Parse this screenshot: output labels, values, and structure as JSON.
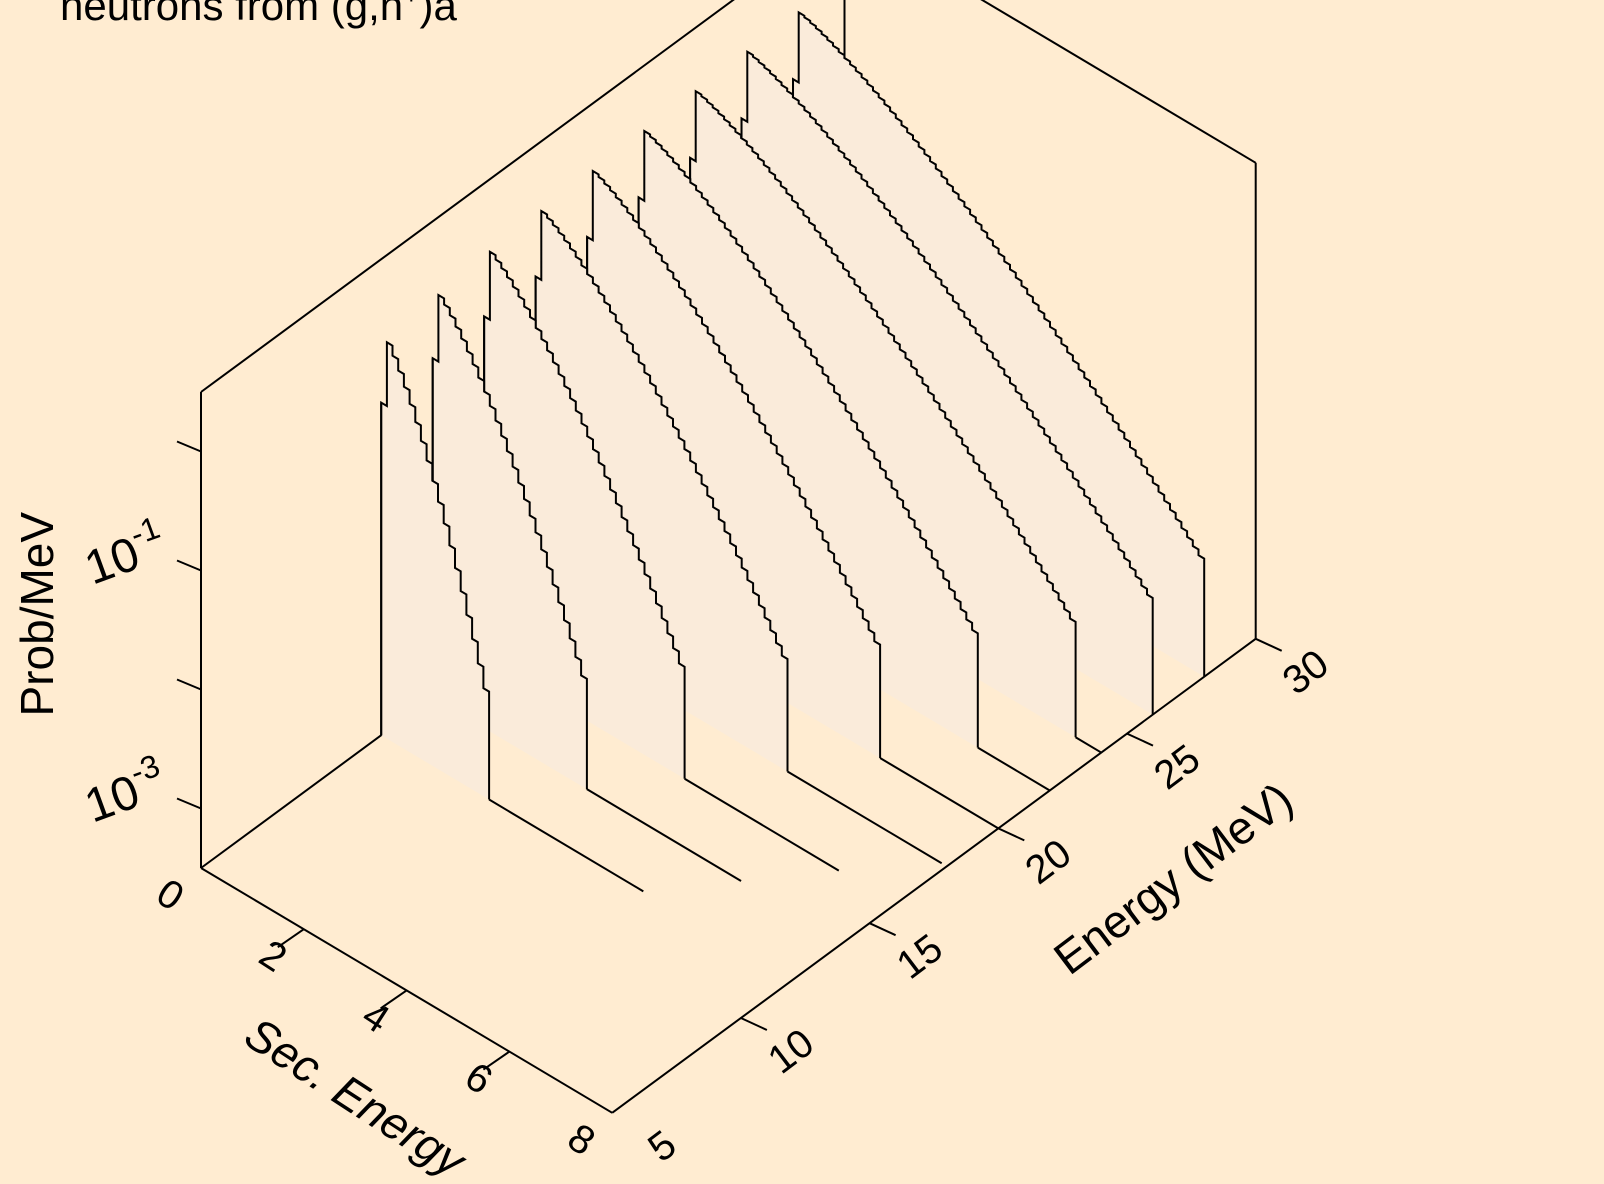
{
  "chart_data": {
    "type": "area",
    "subtype": "3d-waterfall",
    "title": "neutrons from (g,n",
    "title_superscript": "+",
    "title_suffix": ")a",
    "xlabel": "Sec. Energy",
    "ylabel": "Energy (MeV)",
    "zlabel": "Prob/MeV",
    "z_scale": "log",
    "xlim": [
      0,
      8
    ],
    "ylim": [
      5,
      30
    ],
    "zlim": [
      0.0001,
      1
    ],
    "x_ticks": [
      "0",
      "2",
      "4",
      "6",
      "8"
    ],
    "y_ticks": [
      "5",
      "10",
      "15",
      "20",
      "25",
      "30"
    ],
    "z_tick_labels": [
      {
        "base": "10",
        "exp": "-3"
      },
      {
        "base": "10",
        "exp": "-1"
      }
    ],
    "grid": false,
    "series": [
      {
        "energy": 12.0,
        "x_end": 2.1,
        "peak": 0.26
      },
      {
        "energy": 14.0,
        "x_end": 3.0,
        "peak": 0.29
      },
      {
        "energy": 16.0,
        "x_end": 3.9,
        "peak": 0.31
      },
      {
        "energy": 18.0,
        "x_end": 4.9,
        "peak": 0.32
      },
      {
        "energy": 20.0,
        "x_end": 5.7,
        "peak": 0.33
      },
      {
        "energy": 22.0,
        "x_end": 6.6,
        "peak": 0.34
      },
      {
        "energy": 24.0,
        "x_end": 7.5,
        "peak": 0.35
      },
      {
        "energy": 26.0,
        "x_end": 8.0,
        "peak": 0.36
      },
      {
        "energy": 28.0,
        "x_end": 8.0,
        "peak": 0.37
      }
    ],
    "colors": {
      "background": "#FFECD1",
      "fill": "#FAEBDA",
      "line": "#000000"
    }
  }
}
